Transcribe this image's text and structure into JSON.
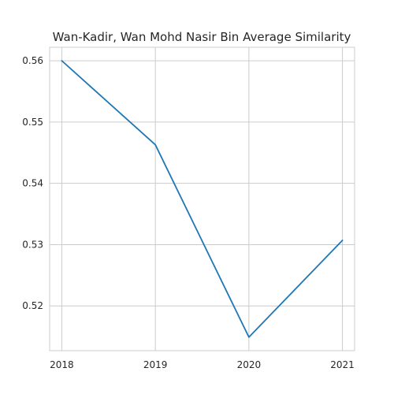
{
  "chart_data": {
    "type": "line",
    "title": "Wan-Kadir, Wan Mohd Nasir Bin Average Similarity",
    "xlabel": "",
    "ylabel": "",
    "x": [
      "2018",
      "2019",
      "2020",
      "2021"
    ],
    "series": [
      {
        "values": [
          0.56,
          0.5463,
          0.5149,
          0.5307
        ],
        "color": "#1f77b4"
      }
    ],
    "xlim": [
      2017.87,
      2021.13
    ],
    "ylim": [
      0.5127,
      0.5622
    ],
    "yticks": [
      0.52,
      0.53,
      0.54,
      0.55,
      0.56
    ],
    "ytick_labels": [
      "0.52",
      "0.53",
      "0.54",
      "0.55",
      "0.56"
    ],
    "grid": true,
    "legend": "none"
  }
}
